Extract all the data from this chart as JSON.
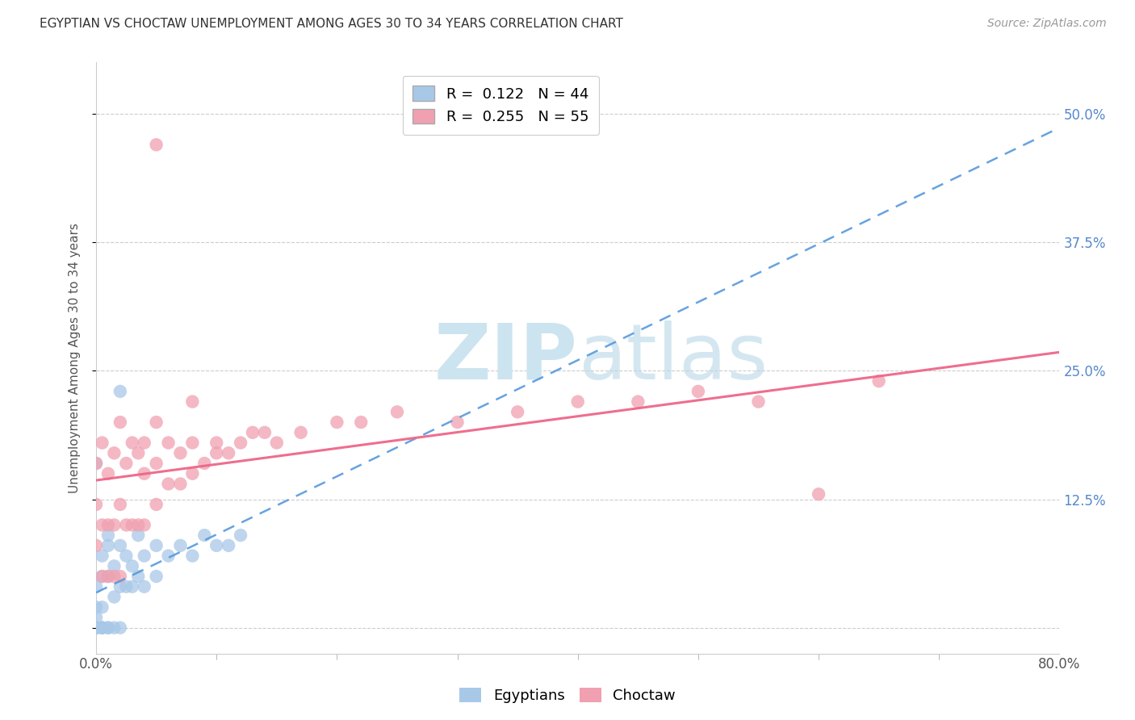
{
  "title": "EGYPTIAN VS CHOCTAW UNEMPLOYMENT AMONG AGES 30 TO 34 YEARS CORRELATION CHART",
  "source": "Source: ZipAtlas.com",
  "ylabel": "Unemployment Among Ages 30 to 34 years",
  "R_egyptian": 0.122,
  "N_egyptian": 44,
  "R_choctaw": 0.255,
  "N_choctaw": 55,
  "xlim": [
    0.0,
    0.8
  ],
  "ylim": [
    -0.02,
    0.55
  ],
  "color_egyptian": "#a8c8e8",
  "color_choctaw": "#f0a0b0",
  "line_color_egyptian": "#5599dd",
  "line_color_choctaw": "#ee6688",
  "background_color": "#ffffff",
  "watermark_color": "#cce4f0",
  "legend_box_color_egyptian": "#a8c8e8",
  "legend_box_color_choctaw": "#f0a0b0",
  "title_fontsize": 11,
  "axis_label_fontsize": 11,
  "tick_fontsize": 12,
  "source_fontsize": 10,
  "legend_fontsize": 13,
  "egyptian_x": [
    0.0,
    0.0,
    0.0,
    0.0,
    0.0,
    0.0,
    0.0,
    0.0,
    0.005,
    0.005,
    0.005,
    0.005,
    0.005,
    0.005,
    0.01,
    0.01,
    0.01,
    0.01,
    0.01,
    0.015,
    0.015,
    0.015,
    0.02,
    0.02,
    0.02,
    0.025,
    0.025,
    0.03,
    0.03,
    0.035,
    0.035,
    0.04,
    0.04,
    0.05,
    0.05,
    0.06,
    0.07,
    0.08,
    0.09,
    0.1,
    0.11,
    0.12,
    0.02,
    0.0
  ],
  "egyptian_y": [
    0.0,
    0.0,
    0.0,
    0.0,
    0.0,
    0.01,
    0.02,
    0.04,
    0.0,
    0.0,
    0.0,
    0.02,
    0.05,
    0.07,
    0.0,
    0.0,
    0.05,
    0.08,
    0.09,
    0.0,
    0.03,
    0.06,
    0.0,
    0.04,
    0.08,
    0.04,
    0.07,
    0.04,
    0.06,
    0.05,
    0.09,
    0.04,
    0.07,
    0.05,
    0.08,
    0.07,
    0.08,
    0.07,
    0.09,
    0.08,
    0.08,
    0.09,
    0.23,
    0.16
  ],
  "choctaw_x": [
    0.0,
    0.0,
    0.0,
    0.005,
    0.005,
    0.005,
    0.01,
    0.01,
    0.01,
    0.015,
    0.015,
    0.015,
    0.02,
    0.02,
    0.02,
    0.025,
    0.025,
    0.03,
    0.03,
    0.035,
    0.035,
    0.04,
    0.04,
    0.04,
    0.05,
    0.05,
    0.05,
    0.06,
    0.06,
    0.07,
    0.07,
    0.08,
    0.08,
    0.09,
    0.1,
    0.11,
    0.12,
    0.13,
    0.14,
    0.15,
    0.17,
    0.2,
    0.22,
    0.25,
    0.3,
    0.35,
    0.4,
    0.45,
    0.5,
    0.55,
    0.6,
    0.65,
    0.1,
    0.05,
    0.08
  ],
  "choctaw_y": [
    0.08,
    0.12,
    0.16,
    0.05,
    0.1,
    0.18,
    0.05,
    0.1,
    0.15,
    0.05,
    0.1,
    0.17,
    0.05,
    0.12,
    0.2,
    0.1,
    0.16,
    0.1,
    0.18,
    0.1,
    0.17,
    0.1,
    0.15,
    0.18,
    0.12,
    0.16,
    0.2,
    0.14,
    0.18,
    0.14,
    0.17,
    0.15,
    0.18,
    0.16,
    0.17,
    0.17,
    0.18,
    0.19,
    0.19,
    0.18,
    0.19,
    0.2,
    0.2,
    0.21,
    0.2,
    0.21,
    0.22,
    0.22,
    0.23,
    0.22,
    0.13,
    0.24,
    0.18,
    0.47,
    0.22
  ]
}
